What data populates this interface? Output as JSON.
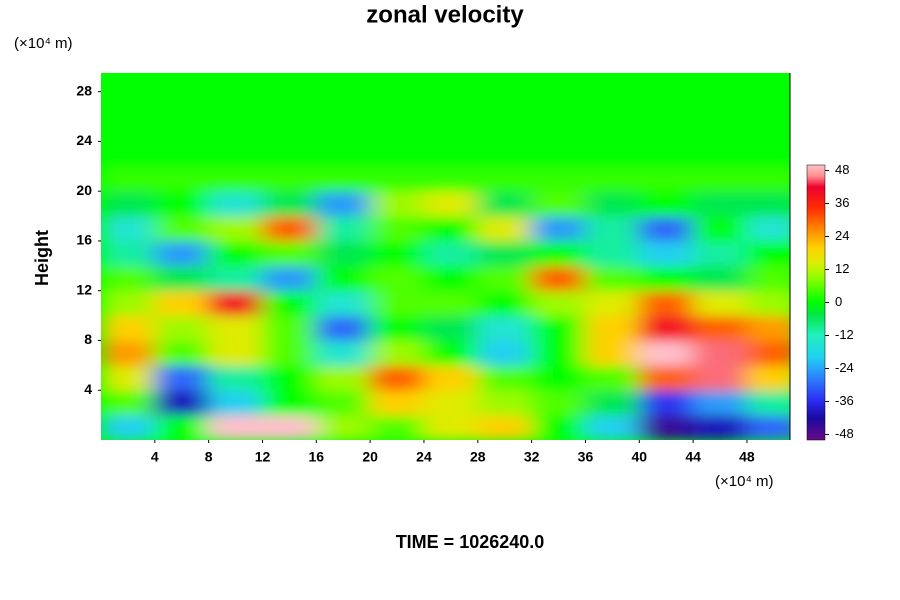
{
  "chart_data": {
    "type": "contour",
    "title": "zonal velocity",
    "ylabel": "Height",
    "y_unit": "(×10⁴ m)",
    "x_unit": "(×10⁴ m)",
    "footer": "TIME = 1026240.0",
    "xlim": [
      0,
      51.2
    ],
    "ylim": [
      0,
      29.5
    ],
    "xticks": [
      4,
      8,
      12,
      16,
      20,
      24,
      28,
      32,
      36,
      40,
      44,
      48
    ],
    "yticks": [
      4,
      8,
      12,
      16,
      20,
      24,
      28
    ],
    "x": [
      2,
      6,
      10,
      14,
      18,
      22,
      26,
      30,
      34,
      38,
      42,
      46,
      50
    ],
    "y": [
      1,
      3,
      5,
      7,
      9,
      11,
      13,
      15,
      17,
      19,
      21,
      23,
      25,
      27,
      29
    ],
    "z": [
      [
        -20,
        0,
        50,
        50,
        10,
        5,
        15,
        20,
        0,
        -20,
        -45,
        -40,
        -30
      ],
      [
        5,
        -40,
        -20,
        0,
        5,
        20,
        15,
        10,
        5,
        -5,
        -35,
        -25,
        -10
      ],
      [
        15,
        -30,
        -10,
        0,
        10,
        30,
        20,
        5,
        0,
        5,
        30,
        45,
        20
      ],
      [
        25,
        5,
        15,
        5,
        -15,
        10,
        0,
        -20,
        0,
        20,
        50,
        45,
        30
      ],
      [
        20,
        10,
        15,
        5,
        -30,
        0,
        -5,
        -15,
        0,
        20,
        40,
        30,
        25
      ],
      [
        10,
        20,
        40,
        0,
        -15,
        5,
        5,
        0,
        10,
        15,
        30,
        15,
        10
      ],
      [
        5,
        -5,
        -10,
        -25,
        0,
        5,
        0,
        5,
        30,
        5,
        0,
        -5,
        5
      ],
      [
        -10,
        -25,
        0,
        5,
        -5,
        0,
        -10,
        -5,
        0,
        -10,
        -20,
        -10,
        0
      ],
      [
        -15,
        5,
        10,
        30,
        -10,
        5,
        0,
        15,
        -25,
        -10,
        -30,
        0,
        -15
      ],
      [
        -5,
        0,
        -15,
        -5,
        -25,
        10,
        15,
        -5,
        5,
        -5,
        0,
        -5,
        -5
      ],
      [
        3,
        3,
        3,
        3,
        3,
        3,
        3,
        3,
        3,
        3,
        3,
        3,
        3
      ],
      [
        0,
        0,
        0,
        0,
        0,
        0,
        0,
        0,
        0,
        0,
        0,
        0,
        0
      ],
      [
        0,
        0,
        0,
        0,
        0,
        0,
        0,
        0,
        0,
        0,
        0,
        0,
        0
      ],
      [
        0,
        0,
        0,
        0,
        0,
        0,
        0,
        0,
        0,
        0,
        0,
        0,
        0
      ],
      [
        0,
        0,
        0,
        0,
        0,
        0,
        0,
        0,
        0,
        0,
        0,
        0,
        0
      ]
    ],
    "clim": [
      -50,
      50
    ],
    "cticks": [
      48,
      36,
      24,
      12,
      0,
      -12,
      -24,
      -36,
      -48
    ],
    "colormap": [
      {
        "value": -50,
        "color": "#6a0a8a"
      },
      {
        "value": -42,
        "color": "#1a0aa0"
      },
      {
        "value": -36,
        "color": "#2a2af0"
      },
      {
        "value": -28,
        "color": "#2f7bff"
      },
      {
        "value": -20,
        "color": "#20d0f0"
      },
      {
        "value": -12,
        "color": "#20f0c0"
      },
      {
        "value": -4,
        "color": "#00e840"
      },
      {
        "value": 0,
        "color": "#00ff00"
      },
      {
        "value": 8,
        "color": "#80ff00"
      },
      {
        "value": 14,
        "color": "#d8f000"
      },
      {
        "value": 20,
        "color": "#ffd000"
      },
      {
        "value": 26,
        "color": "#ff9000"
      },
      {
        "value": 34,
        "color": "#ff3000"
      },
      {
        "value": 42,
        "color": "#f00030"
      },
      {
        "value": 46,
        "color": "#ff9090"
      },
      {
        "value": 50,
        "color": "#ffc0cb"
      }
    ]
  }
}
